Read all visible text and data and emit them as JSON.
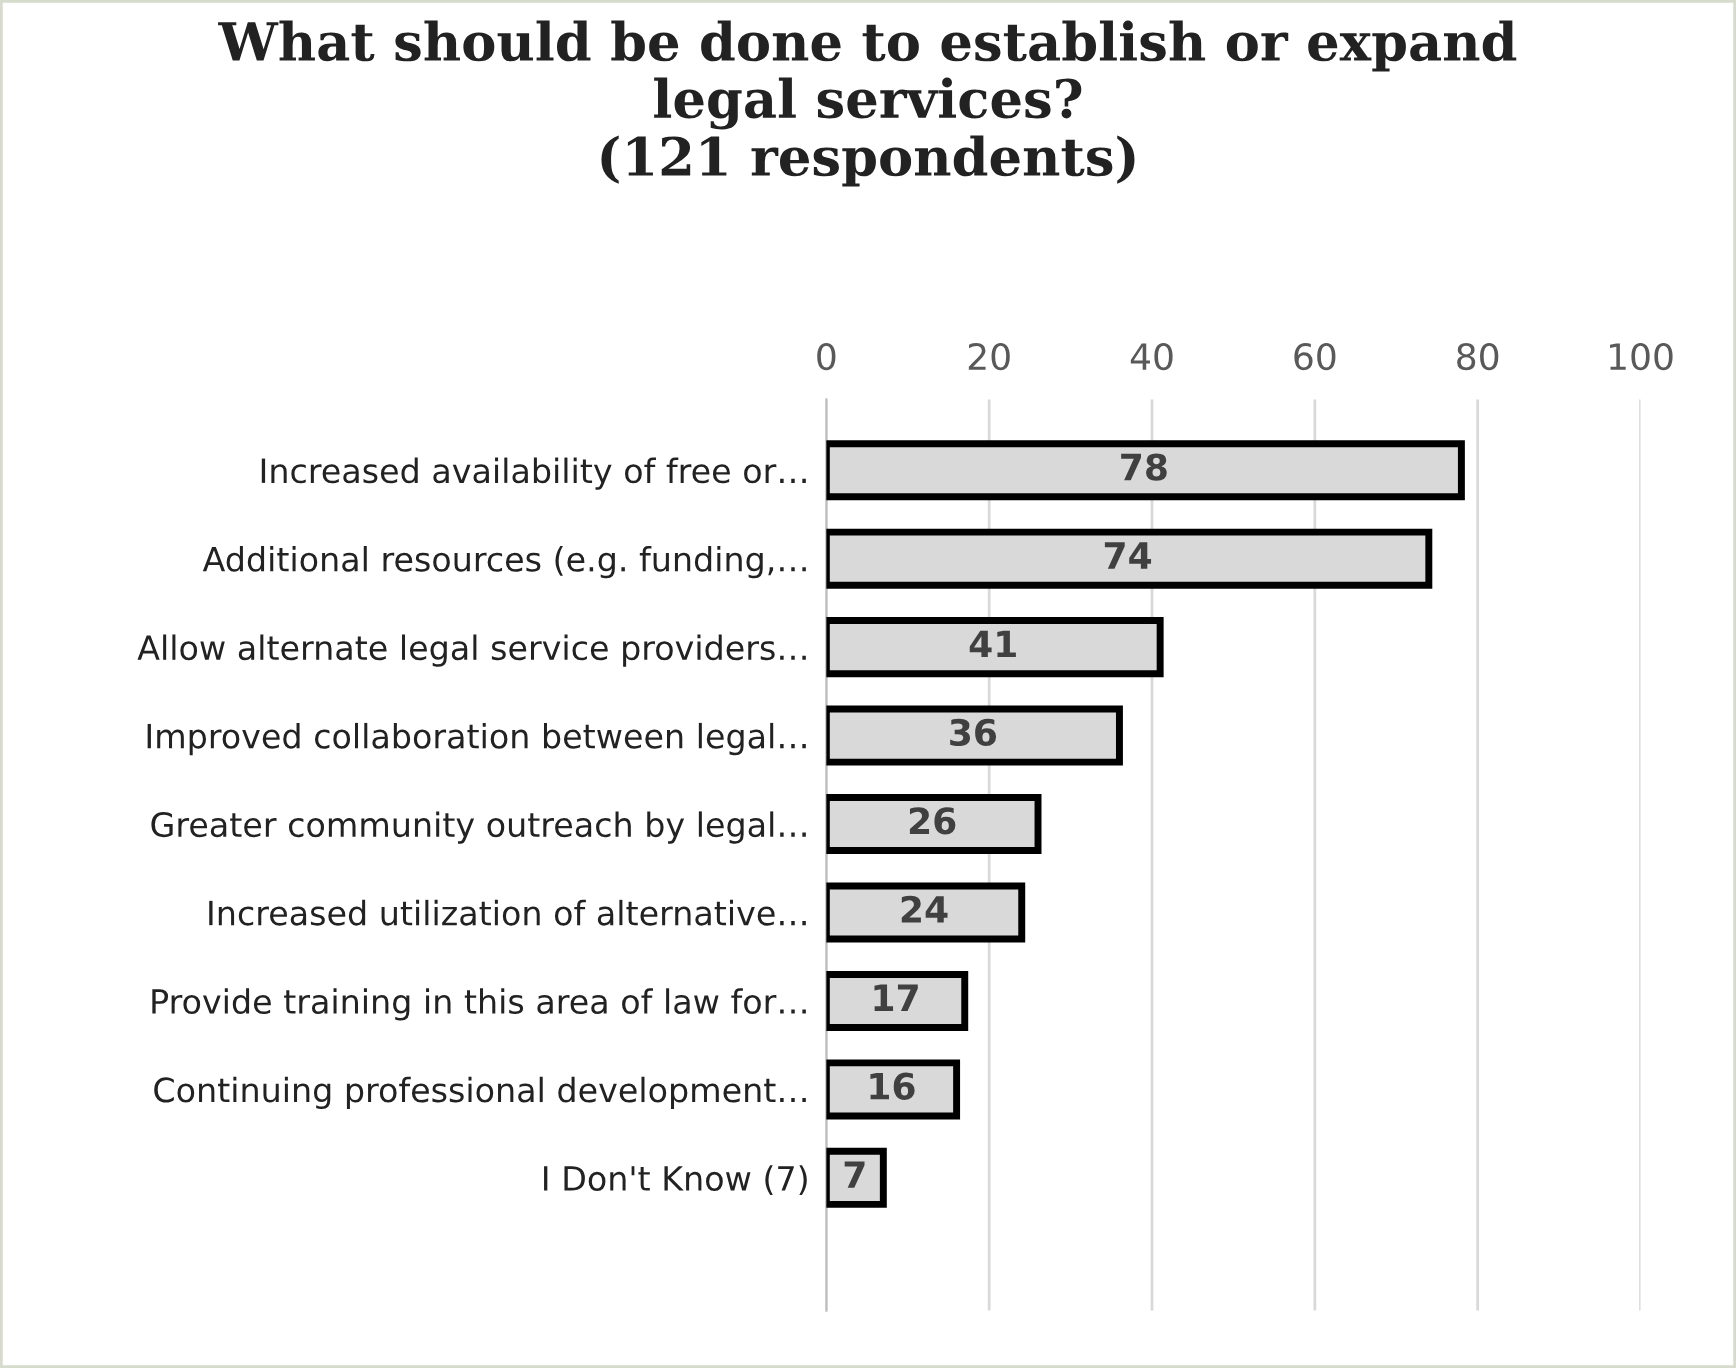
{
  "chart_data": {
    "type": "bar",
    "orientation": "horizontal",
    "title": "What should be done to establish or expand\nlegal services?\n(121 respondents)",
    "categories": [
      "Increased availability of free or…",
      "Additional resources (e.g. funding,…",
      "Allow alternate legal service providers…",
      "Improved collaboration between legal…",
      "Greater community outreach by legal…",
      "Increased utilization of alternative…",
      "Provide training in this area of law for…",
      "Continuing professional development…",
      "I Don't Know (7)"
    ],
    "values": [
      78,
      74,
      41,
      36,
      26,
      24,
      17,
      16,
      7
    ],
    "color": "#d9d9d9",
    "xlim": [
      0,
      100
    ],
    "xticks": [
      0,
      20,
      40,
      60,
      80,
      100
    ],
    "grid": "x",
    "data_labels": true,
    "legend": false
  }
}
